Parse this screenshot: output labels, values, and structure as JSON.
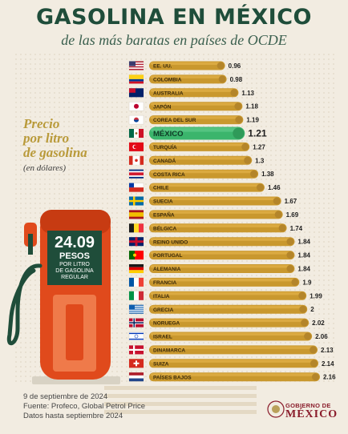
{
  "header": {
    "title": "GASOLINA EN MÉXICO",
    "subtitle": "de las más baratas en países de OCDE"
  },
  "side": {
    "title_lines": [
      "Precio",
      "por litro",
      "de gasolina"
    ],
    "note": "(en dólares)"
  },
  "pump": {
    "price": "24.09",
    "unit": "PESOS",
    "desc_lines": [
      "POR LITRO",
      "DE GASOLINA",
      "REGULAR"
    ]
  },
  "footer": {
    "date": "9 de septiembre de 2024",
    "source": "Fuente: Profeco, Global Petrol Price",
    "data_note": "Datos hasta septiembre 2024"
  },
  "brand": {
    "top": "GOBIERNO DE",
    "main": "MÉXICO"
  },
  "colors": {
    "bar": "#c9982e",
    "bar_light": "#e2b24a",
    "highlight": "#3bb56c",
    "title": "#1f4d3a",
    "pump_red": "#e04a1c",
    "pump_base": "#d8d2c4"
  },
  "chart_data": {
    "type": "bar",
    "orientation": "horizontal",
    "highlight": "MÉXICO",
    "categories": [
      "EE. UU.",
      "COLOMBIA",
      "AUSTRALIA",
      "JAPÓN",
      "COREA DEL SUR",
      "MÉXICO",
      "TURQUÍA",
      "CANADÁ",
      "COSTA RICA",
      "CHILE",
      "SUECIA",
      "ESPAÑA",
      "BÉLGICA",
      "REINO UNIDO",
      "PORTUGAL",
      "ALEMANIA",
      "FRANCIA",
      "ITALIA",
      "GRECIA",
      "NORUEGA",
      "ISRAEL",
      "DINAMARCA",
      "SUIZA",
      "PAÍSES BAJOS"
    ],
    "values": [
      0.96,
      0.98,
      1.13,
      1.18,
      1.19,
      1.21,
      1.27,
      1.3,
      1.38,
      1.46,
      1.67,
      1.69,
      1.74,
      1.84,
      1.84,
      1.84,
      1.9,
      1.99,
      2,
      2.02,
      2.06,
      2.13,
      2.14,
      2.16
    ],
    "labels": [
      "0.96",
      "0.98",
      "1.13",
      "1.18",
      "1.19",
      "1.21",
      "1.27",
      "1.3",
      "1.38",
      "1.46",
      "1.67",
      "1.69",
      "1.74",
      "1.84",
      "1.84",
      "1.84",
      "1.9",
      "1.99",
      "2",
      "2.02",
      "2.06",
      "2.13",
      "2.14",
      "2.16"
    ],
    "flags": [
      "flag-usa",
      "flag-colombia",
      "flag-australia",
      "flag-japan",
      "flag-south-korea",
      "flag-mexico",
      "flag-turkey",
      "flag-canada",
      "flag-costa-rica",
      "flag-chile",
      "flag-sweden",
      "flag-spain",
      "flag-belgium",
      "flag-uk",
      "flag-portugal",
      "flag-germany",
      "flag-france",
      "flag-italy",
      "flag-greece",
      "flag-norway",
      "flag-israel",
      "flag-denmark",
      "flag-switzerland",
      "flag-netherlands"
    ]
  }
}
